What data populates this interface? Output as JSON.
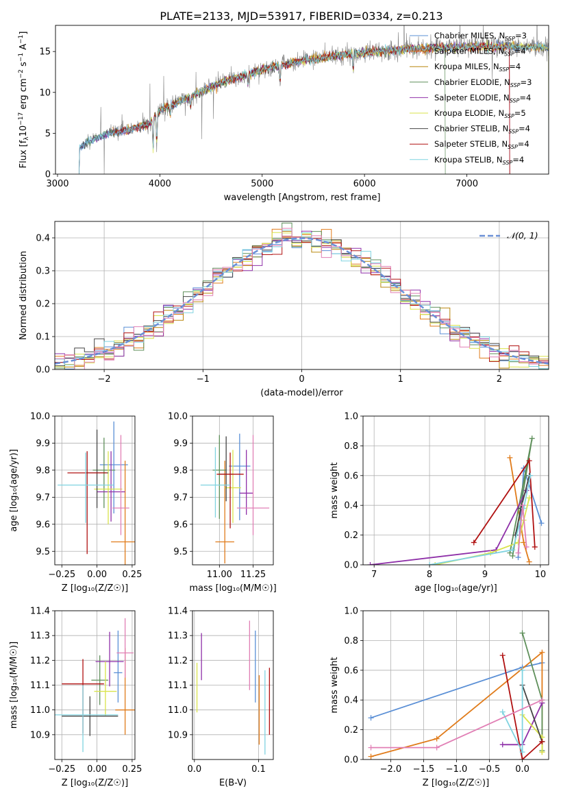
{
  "figure_title": "PLATE=2133, MJD=53917, FIBERID=0334, z=0.213",
  "colors": {
    "chabrier_miles": "#5a8fd6",
    "salpeter_miles": "#e07b1a",
    "kroupa_miles": "#b8860b",
    "chabrier_elodie": "#5e8f5a",
    "salpeter_elodie": "#8e2fa8",
    "kroupa_elodie": "#d9e34a",
    "chabrier_stelib": "#444444",
    "salpeter_stelib": "#b01010",
    "kroupa_stelib": "#7fd3e0",
    "pink": "#e17fb5",
    "gray_spec": "#808080",
    "grid": "#b0b0b0",
    "gauss": "#6a8fd6"
  },
  "chart_data": [
    {
      "type": "line",
      "id": "spectrum",
      "xlabel": "wavelength [Angstrom, rest frame]",
      "ylabel_parts": [
        "Flux [f",
        "λ",
        "10",
        "−17",
        " erg cm",
        "−2",
        " s",
        "−1",
        " A",
        "−1",
        "]"
      ],
      "xlim": [
        2980,
        7800
      ],
      "ylim": [
        0,
        18.2
      ],
      "xticks": [
        "3000",
        "4000",
        "5000",
        "6000",
        "7000"
      ],
      "xtick_values": [
        3000,
        4000,
        5000,
        6000,
        7000
      ],
      "yticks": [
        "0",
        "5",
        "10",
        "15"
      ],
      "ytick_values": [
        0,
        5,
        10,
        15
      ],
      "legend": [
        {
          "label_main": "Chabrier MILES, N",
          "label_sub": "SSP",
          "label_tail": "=3",
          "color": "#5a8fd6"
        },
        {
          "label_main": "Salpeter MILES, N",
          "label_sub": "SSP",
          "label_tail": "=4",
          "color": "#e07b1a"
        },
        {
          "label_main": "Kroupa MILES, N",
          "label_sub": "SSP",
          "label_tail": "=4",
          "color": "#b8860b"
        },
        {
          "label_main": "Chabrier ELODIE, N",
          "label_sub": "SSP",
          "label_tail": "=3",
          "color": "#5e8f5a"
        },
        {
          "label_main": "Salpeter ELODIE, N",
          "label_sub": "SSP",
          "label_tail": "=4",
          "color": "#8e2fa8"
        },
        {
          "label_main": "Kroupa ELODIE, N",
          "label_sub": "SSP",
          "label_tail": "=5",
          "color": "#d9e34a"
        },
        {
          "label_main": "Chabrier STELIB, N",
          "label_sub": "SSP",
          "label_tail": "=4",
          "color": "#444444"
        },
        {
          "label_main": "Salpeter STELIB, N",
          "label_sub": "SSP",
          "label_tail": "=4",
          "color": "#b01010"
        },
        {
          "label_main": "Kroupa STELIB, N",
          "label_sub": "SSP",
          "label_tail": "=4",
          "color": "#7fd3e0"
        }
      ],
      "continuum_knots": [
        [
          3210,
          0
        ],
        [
          3215,
          3.2
        ],
        [
          3300,
          4.0
        ],
        [
          3500,
          5.0
        ],
        [
          3700,
          5.4
        ],
        [
          3900,
          6.2
        ],
        [
          4000,
          7.8
        ],
        [
          4300,
          9.5
        ],
        [
          4600,
          11.2
        ],
        [
          5000,
          12.8
        ],
        [
          5400,
          13.9
        ],
        [
          5800,
          14.6
        ],
        [
          6200,
          15.1
        ],
        [
          6600,
          15.4
        ],
        [
          7000,
          15.6
        ],
        [
          7400,
          15.6
        ],
        [
          7800,
          15.5
        ]
      ]
    },
    {
      "type": "histogram",
      "id": "residuals",
      "xlabel": "(data-model)/error",
      "ylabel": "Normed distribution",
      "xlim": [
        -2.5,
        2.5
      ],
      "ylim": [
        0,
        0.45
      ],
      "xticks": [
        "−2",
        "−1",
        "0",
        "1",
        "2"
      ],
      "xtick_values": [
        -2,
        -1,
        0,
        1,
        2
      ],
      "yticks": [
        "0.0",
        "0.1",
        "0.2",
        "0.3",
        "0.4"
      ],
      "ytick_values": [
        0,
        0.1,
        0.2,
        0.3,
        0.4
      ],
      "grid": true,
      "legend": [
        {
          "label": "𝒩(0, 1)",
          "color": "#6a8fd6"
        }
      ],
      "bin_width": 0.1
    },
    {
      "type": "errorbar",
      "id": "age_vs_Z",
      "xlabel": "Z [log₁₀(Z/Z☉)]",
      "ylabel": "age  [log₁₀(age/yr)]",
      "xlim": [
        -0.3,
        0.27
      ],
      "ylim": [
        9.45,
        10.0
      ],
      "xticks": [
        "−0.25",
        "0.00",
        "0.25"
      ],
      "xtick_values": [
        -0.25,
        0,
        0.25
      ],
      "yticks": [
        "9.5",
        "9.6",
        "9.7",
        "9.8",
        "9.9",
        "10.0"
      ],
      "ytick_values": [
        9.5,
        9.6,
        9.7,
        9.8,
        9.9,
        10.0
      ],
      "points": [
        {
          "x": 0.12,
          "y": 9.82,
          "xerr": 0.1,
          "yerr": [
            0.18,
            0.16
          ],
          "color": "#5a8fd6"
        },
        {
          "x": 0.2,
          "y": 9.535,
          "xerr": 0.1,
          "yerr": [
            0.085,
            0.3
          ],
          "color": "#e07b1a"
        },
        {
          "x": 0.05,
          "y": 9.8,
          "xerr": 0.08,
          "yerr": [
            0.14,
            0.12
          ],
          "color": "#5e8f5a"
        },
        {
          "x": 0.1,
          "y": 9.72,
          "xerr": 0.1,
          "yerr": [
            0.11,
            0.15
          ],
          "color": "#8e2fa8"
        },
        {
          "x": 0.08,
          "y": 9.73,
          "xerr": 0.1,
          "yerr": [
            0.13,
            0.14
          ],
          "color": "#d9e34a"
        },
        {
          "x": 0.0,
          "y": 9.79,
          "xerr": 0.08,
          "yerr": [
            0.13,
            0.16
          ],
          "color": "#444444"
        },
        {
          "x": -0.07,
          "y": 9.79,
          "xerr": 0.14,
          "yerr": [
            0.3,
            0.08
          ],
          "color": "#b01010"
        },
        {
          "x": -0.08,
          "y": 9.745,
          "xerr": 0.2,
          "yerr": [
            0.14,
            0.12
          ],
          "color": "#7fd3e0"
        },
        {
          "x": 0.17,
          "y": 9.66,
          "xerr": 0.06,
          "yerr": [
            0.1,
            0.27
          ],
          "color": "#e17fb5"
        }
      ]
    },
    {
      "type": "errorbar",
      "id": "age_vs_mass",
      "xlabel": "mass [log₁₀(M/M☉)]",
      "ylabel": "",
      "xlim": [
        10.8,
        11.4
      ],
      "ylim": [
        9.45,
        10.0
      ],
      "xticks": [
        "11.00",
        "11.25"
      ],
      "xtick_values": [
        11.0,
        11.25
      ],
      "yticks": [
        "9.5",
        "9.6",
        "9.7",
        "9.8",
        "9.9",
        "10.0"
      ],
      "ytick_values": [
        9.5,
        9.6,
        9.7,
        9.8,
        9.9,
        10.0
      ],
      "points": [
        {
          "x": 11.15,
          "y": 9.815,
          "xerr": 0.08,
          "yerr": [
            0.2,
            0.12
          ],
          "color": "#5a8fd6"
        },
        {
          "x": 11.04,
          "y": 9.535,
          "xerr": 0.07,
          "yerr": [
            0.08,
            0.3
          ],
          "color": "#e07b1a"
        },
        {
          "x": 11.0,
          "y": 9.8,
          "xerr": 0.05,
          "yerr": [
            0.18,
            0.13
          ],
          "color": "#5e8f5a"
        },
        {
          "x": 11.2,
          "y": 9.715,
          "xerr": 0.05,
          "yerr": [
            0.08,
            0.16
          ],
          "color": "#8e2fa8"
        },
        {
          "x": 11.1,
          "y": 9.735,
          "xerr": 0.06,
          "yerr": [
            0.13,
            0.14
          ],
          "color": "#d9e34a"
        },
        {
          "x": 11.05,
          "y": 9.785,
          "xerr": 0.05,
          "yerr": [
            0.1,
            0.14
          ],
          "color": "#444444"
        },
        {
          "x": 11.08,
          "y": 9.785,
          "xerr": 0.1,
          "yerr": [
            0.2,
            0.08
          ],
          "color": "#b01010"
        },
        {
          "x": 10.97,
          "y": 9.745,
          "xerr": 0.11,
          "yerr": [
            0.12,
            0.14
          ],
          "color": "#7fd3e0"
        },
        {
          "x": 11.25,
          "y": 9.66,
          "xerr": 0.12,
          "yerr": [
            0.1,
            0.27
          ],
          "color": "#e17fb5"
        }
      ]
    },
    {
      "type": "line",
      "id": "weight_vs_age",
      "xlabel": "age  [log₁₀(age/yr)]",
      "ylabel": "mass weight",
      "xlim": [
        6.8,
        10.15
      ],
      "ylim": [
        0,
        1.0
      ],
      "xticks": [
        "7",
        "8",
        "9",
        "10"
      ],
      "xtick_values": [
        7,
        8,
        9,
        10
      ],
      "yticks": [
        "0.0",
        "0.2",
        "0.4",
        "0.6",
        "0.8",
        "1.0"
      ],
      "ytick_values": [
        0,
        0.2,
        0.4,
        0.6,
        0.8,
        1.0
      ],
      "grid": true,
      "series": [
        {
          "color": "#5a8fd6",
          "x": [
            10.02,
            9.7,
            9.6
          ],
          "y": [
            0.28,
            0.65,
            0.05
          ]
        },
        {
          "color": "#e07b1a",
          "x": [
            9.45,
            9.7,
            9.8
          ],
          "y": [
            0.72,
            0.15,
            0.02
          ]
        },
        {
          "color": "#5e8f5a",
          "x": [
            9.5,
            9.85,
            9.45
          ],
          "y": [
            0.06,
            0.85,
            0.08
          ]
        },
        {
          "color": "#8e2fa8",
          "x": [
            6.93,
            9.2,
            9.75
          ],
          "y": [
            0.0,
            0.1,
            0.5
          ]
        },
        {
          "color": "#d9e34a",
          "x": [
            8.1,
            9.1,
            9.6,
            9.7,
            9.8
          ],
          "y": [
            0.0,
            0.08,
            0.15,
            0.3,
            0.45
          ]
        },
        {
          "color": "#444444",
          "x": [
            9.55,
            9.65,
            9.8
          ],
          "y": [
            0.2,
            0.38,
            0.6
          ]
        },
        {
          "color": "#b01010",
          "x": [
            8.8,
            9.8,
            9.9
          ],
          "y": [
            0.15,
            0.7,
            0.12
          ]
        },
        {
          "color": "#7fd3e0",
          "x": [
            8.0,
            9.5,
            9.7,
            9.82
          ],
          "y": [
            0.0,
            0.1,
            0.38,
            0.6
          ]
        },
        {
          "color": "#e17fb5",
          "x": [
            9.6,
            9.68,
            9.75
          ],
          "y": [
            0.08,
            0.4,
            0.12
          ]
        }
      ]
    },
    {
      "type": "errorbar",
      "id": "mass_vs_Z",
      "xlabel": "Z [log₁₀(Z/Z☉)]",
      "ylabel": "mass [log₁₀(M/M☉)]",
      "xlim": [
        -0.3,
        0.27
      ],
      "ylim": [
        10.8,
        11.4
      ],
      "xticks": [
        "−0.25",
        "0.00",
        "0.25"
      ],
      "xtick_values": [
        -0.25,
        0,
        0.25
      ],
      "yticks": [
        "10.9",
        "11.0",
        "11.1",
        "11.2",
        "11.3",
        "11.4"
      ],
      "ytick_values": [
        10.9,
        11.0,
        11.1,
        11.2,
        11.3,
        11.4
      ],
      "points": [
        {
          "x": 0.15,
          "y": 11.15,
          "xerr": 0.03,
          "yerr": [
            0.12,
            0.17
          ],
          "color": "#5a8fd6"
        },
        {
          "x": 0.2,
          "y": 11.0,
          "xerr": 0.07,
          "yerr": [
            0.1,
            0.25
          ],
          "color": "#e07b1a"
        },
        {
          "x": 0.02,
          "y": 11.12,
          "xerr": 0.06,
          "yerr": [
            0.1,
            0.1
          ],
          "color": "#5e8f5a"
        },
        {
          "x": 0.09,
          "y": 11.195,
          "xerr": 0.1,
          "yerr": [
            0.1,
            0.12
          ],
          "color": "#8e2fa8"
        },
        {
          "x": 0.06,
          "y": 11.075,
          "xerr": 0.08,
          "yerr": [
            0.1,
            0.12
          ],
          "color": "#d9e34a"
        },
        {
          "x": -0.05,
          "y": 10.975,
          "xerr": 0.2,
          "yerr": [
            0.08,
            0.08
          ],
          "color": "#444444"
        },
        {
          "x": -0.1,
          "y": 11.105,
          "xerr": 0.15,
          "yerr": [
            0.2,
            0.1
          ],
          "color": "#b01010"
        },
        {
          "x": -0.1,
          "y": 10.98,
          "xerr": 0.25,
          "yerr": [
            0.15,
            0.12
          ],
          "color": "#7fd3e0"
        },
        {
          "x": 0.2,
          "y": 11.23,
          "xerr": 0.06,
          "yerr": [
            0.1,
            0.14
          ],
          "color": "#e17fb5"
        }
      ]
    },
    {
      "type": "errorbar",
      "id": "mass_vs_ebv",
      "xlabel": "E(B-V)",
      "ylabel": "",
      "xlim": [
        -0.003,
        0.123
      ],
      "ylim": [
        10.8,
        11.4
      ],
      "xticks": [
        "0.0",
        "0.1"
      ],
      "xtick_values": [
        0,
        0.1
      ],
      "yticks": [
        "10.9",
        "11.0",
        "11.1",
        "11.2",
        "11.3",
        "11.4"
      ],
      "ytick_values": [
        10.9,
        11.0,
        11.1,
        11.2,
        11.3,
        11.4
      ],
      "points": [
        {
          "x": 0.095,
          "y": 11.17,
          "xerr": 0,
          "yerr": [
            0.14,
            0.15
          ],
          "color": "#5a8fd6"
        },
        {
          "x": 0.101,
          "y": 10.99,
          "xerr": 0,
          "yerr": [
            0.13,
            0.15
          ],
          "color": "#e07b1a"
        },
        {
          "x": 0.011,
          "y": 11.2,
          "xerr": 0,
          "yerr": [
            0.08,
            0.11
          ],
          "color": "#8e2fa8"
        },
        {
          "x": 0.004,
          "y": 11.09,
          "xerr": 0,
          "yerr": [
            0.1,
            0.1
          ],
          "color": "#d9e34a"
        },
        {
          "x": 0.117,
          "y": 11.03,
          "xerr": 0,
          "yerr": [
            0.13,
            0.14
          ],
          "color": "#b01010"
        },
        {
          "x": 0.11,
          "y": 11.0,
          "xerr": 0,
          "yerr": [
            0.18,
            0.16
          ],
          "color": "#7fd3e0"
        },
        {
          "x": 0.086,
          "y": 11.2,
          "xerr": 0,
          "yerr": [
            0.12,
            0.16
          ],
          "color": "#e17fb5"
        }
      ]
    },
    {
      "type": "line",
      "id": "weight_vs_Z",
      "xlabel": "Z [log₁₀(Z/Z☉)]",
      "ylabel": "mass weight",
      "xlim": [
        -2.42,
        0.4
      ],
      "ylim": [
        0,
        1.0
      ],
      "xticks": [
        "−2.0",
        "−1.5",
        "−1.0",
        "−0.5",
        "0.0"
      ],
      "xtick_values": [
        -2.0,
        -1.5,
        -1.0,
        -0.5,
        0.0
      ],
      "yticks": [
        "0.0",
        "0.2",
        "0.4",
        "0.6",
        "0.8",
        "1.0"
      ],
      "ytick_values": [
        0,
        0.2,
        0.4,
        0.6,
        0.8,
        1.0
      ],
      "grid": true,
      "series": [
        {
          "color": "#5a8fd6",
          "x": [
            -2.3,
            0.0,
            0.3
          ],
          "y": [
            0.28,
            0.62,
            0.65
          ]
        },
        {
          "color": "#e07b1a",
          "x": [
            -2.3,
            -1.3,
            0.3,
            0.3
          ],
          "y": [
            0.02,
            0.14,
            0.72,
            0.05
          ]
        },
        {
          "color": "#5e8f5a",
          "x": [
            0.0,
            0.3,
            0.3
          ],
          "y": [
            0.85,
            0.4,
            0.06
          ]
        },
        {
          "color": "#8e2fa8",
          "x": [
            -0.3,
            0.0,
            0.3
          ],
          "y": [
            0.1,
            0.1,
            0.38
          ]
        },
        {
          "color": "#d9e34a",
          "x": [
            0.0,
            0.3,
            0.3
          ],
          "y": [
            0.3,
            0.15,
            0.05
          ]
        },
        {
          "color": "#444444",
          "x": [
            0.0,
            0.3
          ],
          "y": [
            0.5,
            0.12
          ]
        },
        {
          "color": "#b01010",
          "x": [
            -0.3,
            0.0,
            0.3
          ],
          "y": [
            0.7,
            0.0,
            0.12
          ]
        },
        {
          "color": "#7fd3e0",
          "x": [
            -0.3,
            0.0,
            0.0
          ],
          "y": [
            0.32,
            0.05,
            0.6
          ]
        },
        {
          "color": "#e17fb5",
          "x": [
            -2.3,
            -1.3,
            0.3
          ],
          "y": [
            0.08,
            0.08,
            0.4
          ]
        }
      ]
    }
  ]
}
